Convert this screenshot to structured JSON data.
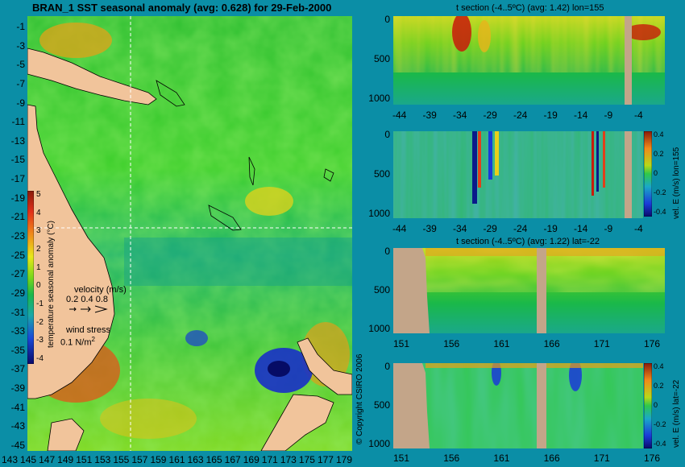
{
  "title": "BRAN_1 SST seasonal anomaly (avg: 0.628) for 29-Feb-2000",
  "copyright": "© Copyright CSIRO 2006",
  "colors": {
    "background": "#0b8ea6",
    "land": "#f1c49b",
    "section_land": "#c3a589",
    "crosshair": "#ffffff"
  },
  "chart_data": [
    {
      "type": "heatmap",
      "name": "map",
      "title": "BRAN_1 SST seasonal anomaly (avg: 0.628) for 29-Feb-2000",
      "ylabels": [
        "-1",
        "-3",
        "-5",
        "-7",
        "-9",
        "-11",
        "-13",
        "-15",
        "-17",
        "-19",
        "-21",
        "-23",
        "-25",
        "-27",
        "-29",
        "-31",
        "-33",
        "-35",
        "-37",
        "-39",
        "-41",
        "-43",
        "-45"
      ],
      "xlabels": [
        "143",
        "145",
        "147",
        "149",
        "151",
        "153",
        "155",
        "157",
        "159",
        "161",
        "163",
        "165",
        "167",
        "169",
        "171",
        "173",
        "175",
        "177",
        "179"
      ],
      "ylim": [
        -45,
        -1
      ],
      "xlim": [
        143,
        179
      ],
      "crosshair": {
        "lon": 155,
        "lat": -22
      },
      "colorbar": {
        "label": "temperature seasonal anomaly (°C)",
        "ticks": [
          "5",
          "4",
          "3",
          "2",
          "1",
          "0",
          "-1",
          "-2",
          "-3",
          "-4"
        ],
        "range": [
          -4,
          5
        ]
      },
      "velocity_legend": {
        "label": "velocity (m/s)",
        "values": "0.2 0.4 0.8"
      },
      "wind_legend": {
        "label": "wind stress",
        "value": "0.1 N/m",
        "exp": "2"
      }
    },
    {
      "type": "heatmap",
      "name": "t-section-lon",
      "title": "t section (-4..5ºC) (avg: 1.42) lon=155",
      "yticks": [
        "0",
        "500",
        "1000"
      ],
      "xticks": [
        "-44",
        "-39",
        "-34",
        "-29",
        "-24",
        "-19",
        "-14",
        "-9",
        "-4"
      ],
      "ylim": [
        0,
        1050
      ],
      "xlim": [
        -46,
        -1
      ]
    },
    {
      "type": "heatmap",
      "name": "vel-e-lon",
      "title": "",
      "yticks": [
        "0",
        "500",
        "1000"
      ],
      "xticks": [
        "-44",
        "-39",
        "-34",
        "-29",
        "-24",
        "-19",
        "-14",
        "-9",
        "-4"
      ],
      "colorbar_label": "vel. E (m/s) lon=155",
      "colorbar_ticks": [
        "0.4",
        "0.2",
        "0",
        "-0.2",
        "-0.4"
      ]
    },
    {
      "type": "heatmap",
      "name": "t-section-lat",
      "title": "t section (-4..5ºC) (avg: 1.22) lat=-22",
      "yticks": [
        "0",
        "500",
        "1000"
      ],
      "xticks": [
        "151",
        "156",
        "161",
        "166",
        "171",
        "176"
      ],
      "xlim": [
        150,
        180
      ]
    },
    {
      "type": "heatmap",
      "name": "vel-e-lat",
      "title": "",
      "yticks": [
        "0",
        "500",
        "1000"
      ],
      "xticks": [
        "151",
        "156",
        "161",
        "166",
        "171",
        "176"
      ],
      "colorbar_label": "vel. E (m/s) lat=-22",
      "colorbar_ticks": [
        "0.4",
        "0.2",
        "0",
        "-0.2",
        "-0.4"
      ]
    }
  ]
}
